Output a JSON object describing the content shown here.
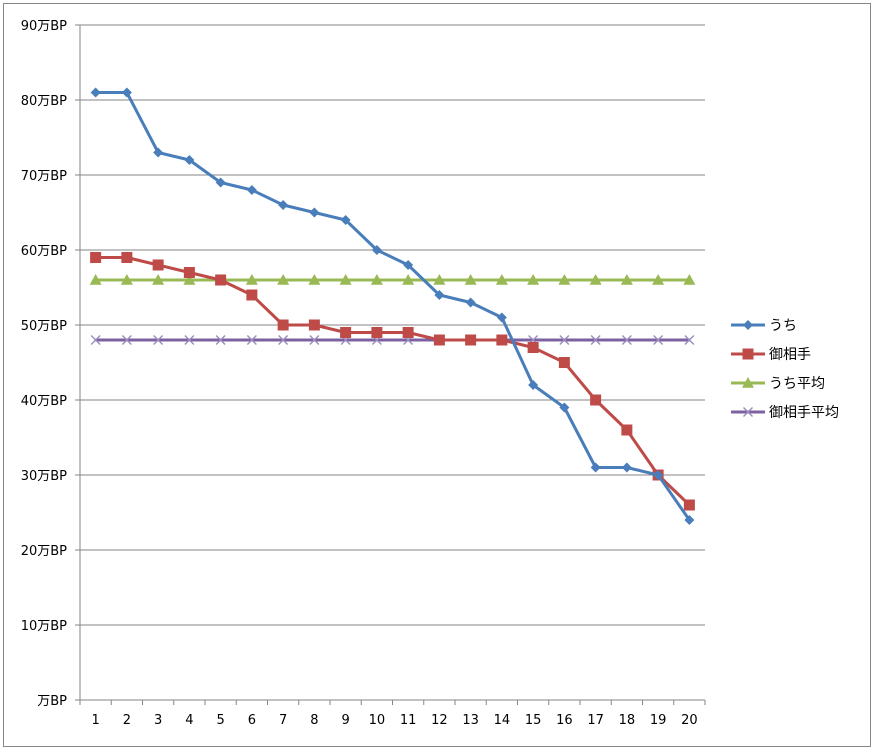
{
  "chart_data": {
    "type": "line",
    "title": "",
    "xlabel": "",
    "ylabel": "",
    "categories": [
      "1",
      "2",
      "3",
      "4",
      "5",
      "6",
      "7",
      "8",
      "9",
      "10",
      "11",
      "12",
      "13",
      "14",
      "15",
      "16",
      "17",
      "18",
      "19",
      "20"
    ],
    "y_tick_labels": [
      "万BP",
      "10万BP",
      "20万BP",
      "30万BP",
      "40万BP",
      "50万BP",
      "60万BP",
      "70万BP",
      "80万BP",
      "90万BP"
    ],
    "ylim": [
      0,
      90
    ],
    "y_step": 10,
    "grid": true,
    "legend_position": "right",
    "series": [
      {
        "name": "うち",
        "color": "#4A7EBB",
        "marker": "diamond",
        "values": [
          81,
          81,
          73,
          72,
          69,
          68,
          66,
          65,
          64,
          60,
          58,
          54,
          53,
          51,
          42,
          39,
          31,
          31,
          30,
          24
        ]
      },
      {
        "name": "御相手",
        "color": "#BE4B48",
        "marker": "square",
        "values": [
          59,
          59,
          58,
          57,
          56,
          54,
          50,
          50,
          49,
          49,
          49,
          48,
          48,
          48,
          47,
          45,
          40,
          36,
          30,
          26
        ]
      },
      {
        "name": "うち平均",
        "color": "#98B954",
        "marker": "triangle",
        "values": [
          56,
          56,
          56,
          56,
          56,
          56,
          56,
          56,
          56,
          56,
          56,
          56,
          56,
          56,
          56,
          56,
          56,
          56,
          56,
          56
        ]
      },
      {
        "name": "御相手平均",
        "color": "#7D60A0",
        "marker": "x",
        "values": [
          48,
          48,
          48,
          48,
          48,
          48,
          48,
          48,
          48,
          48,
          48,
          48,
          48,
          48,
          48,
          48,
          48,
          48,
          48,
          48
        ]
      }
    ]
  }
}
